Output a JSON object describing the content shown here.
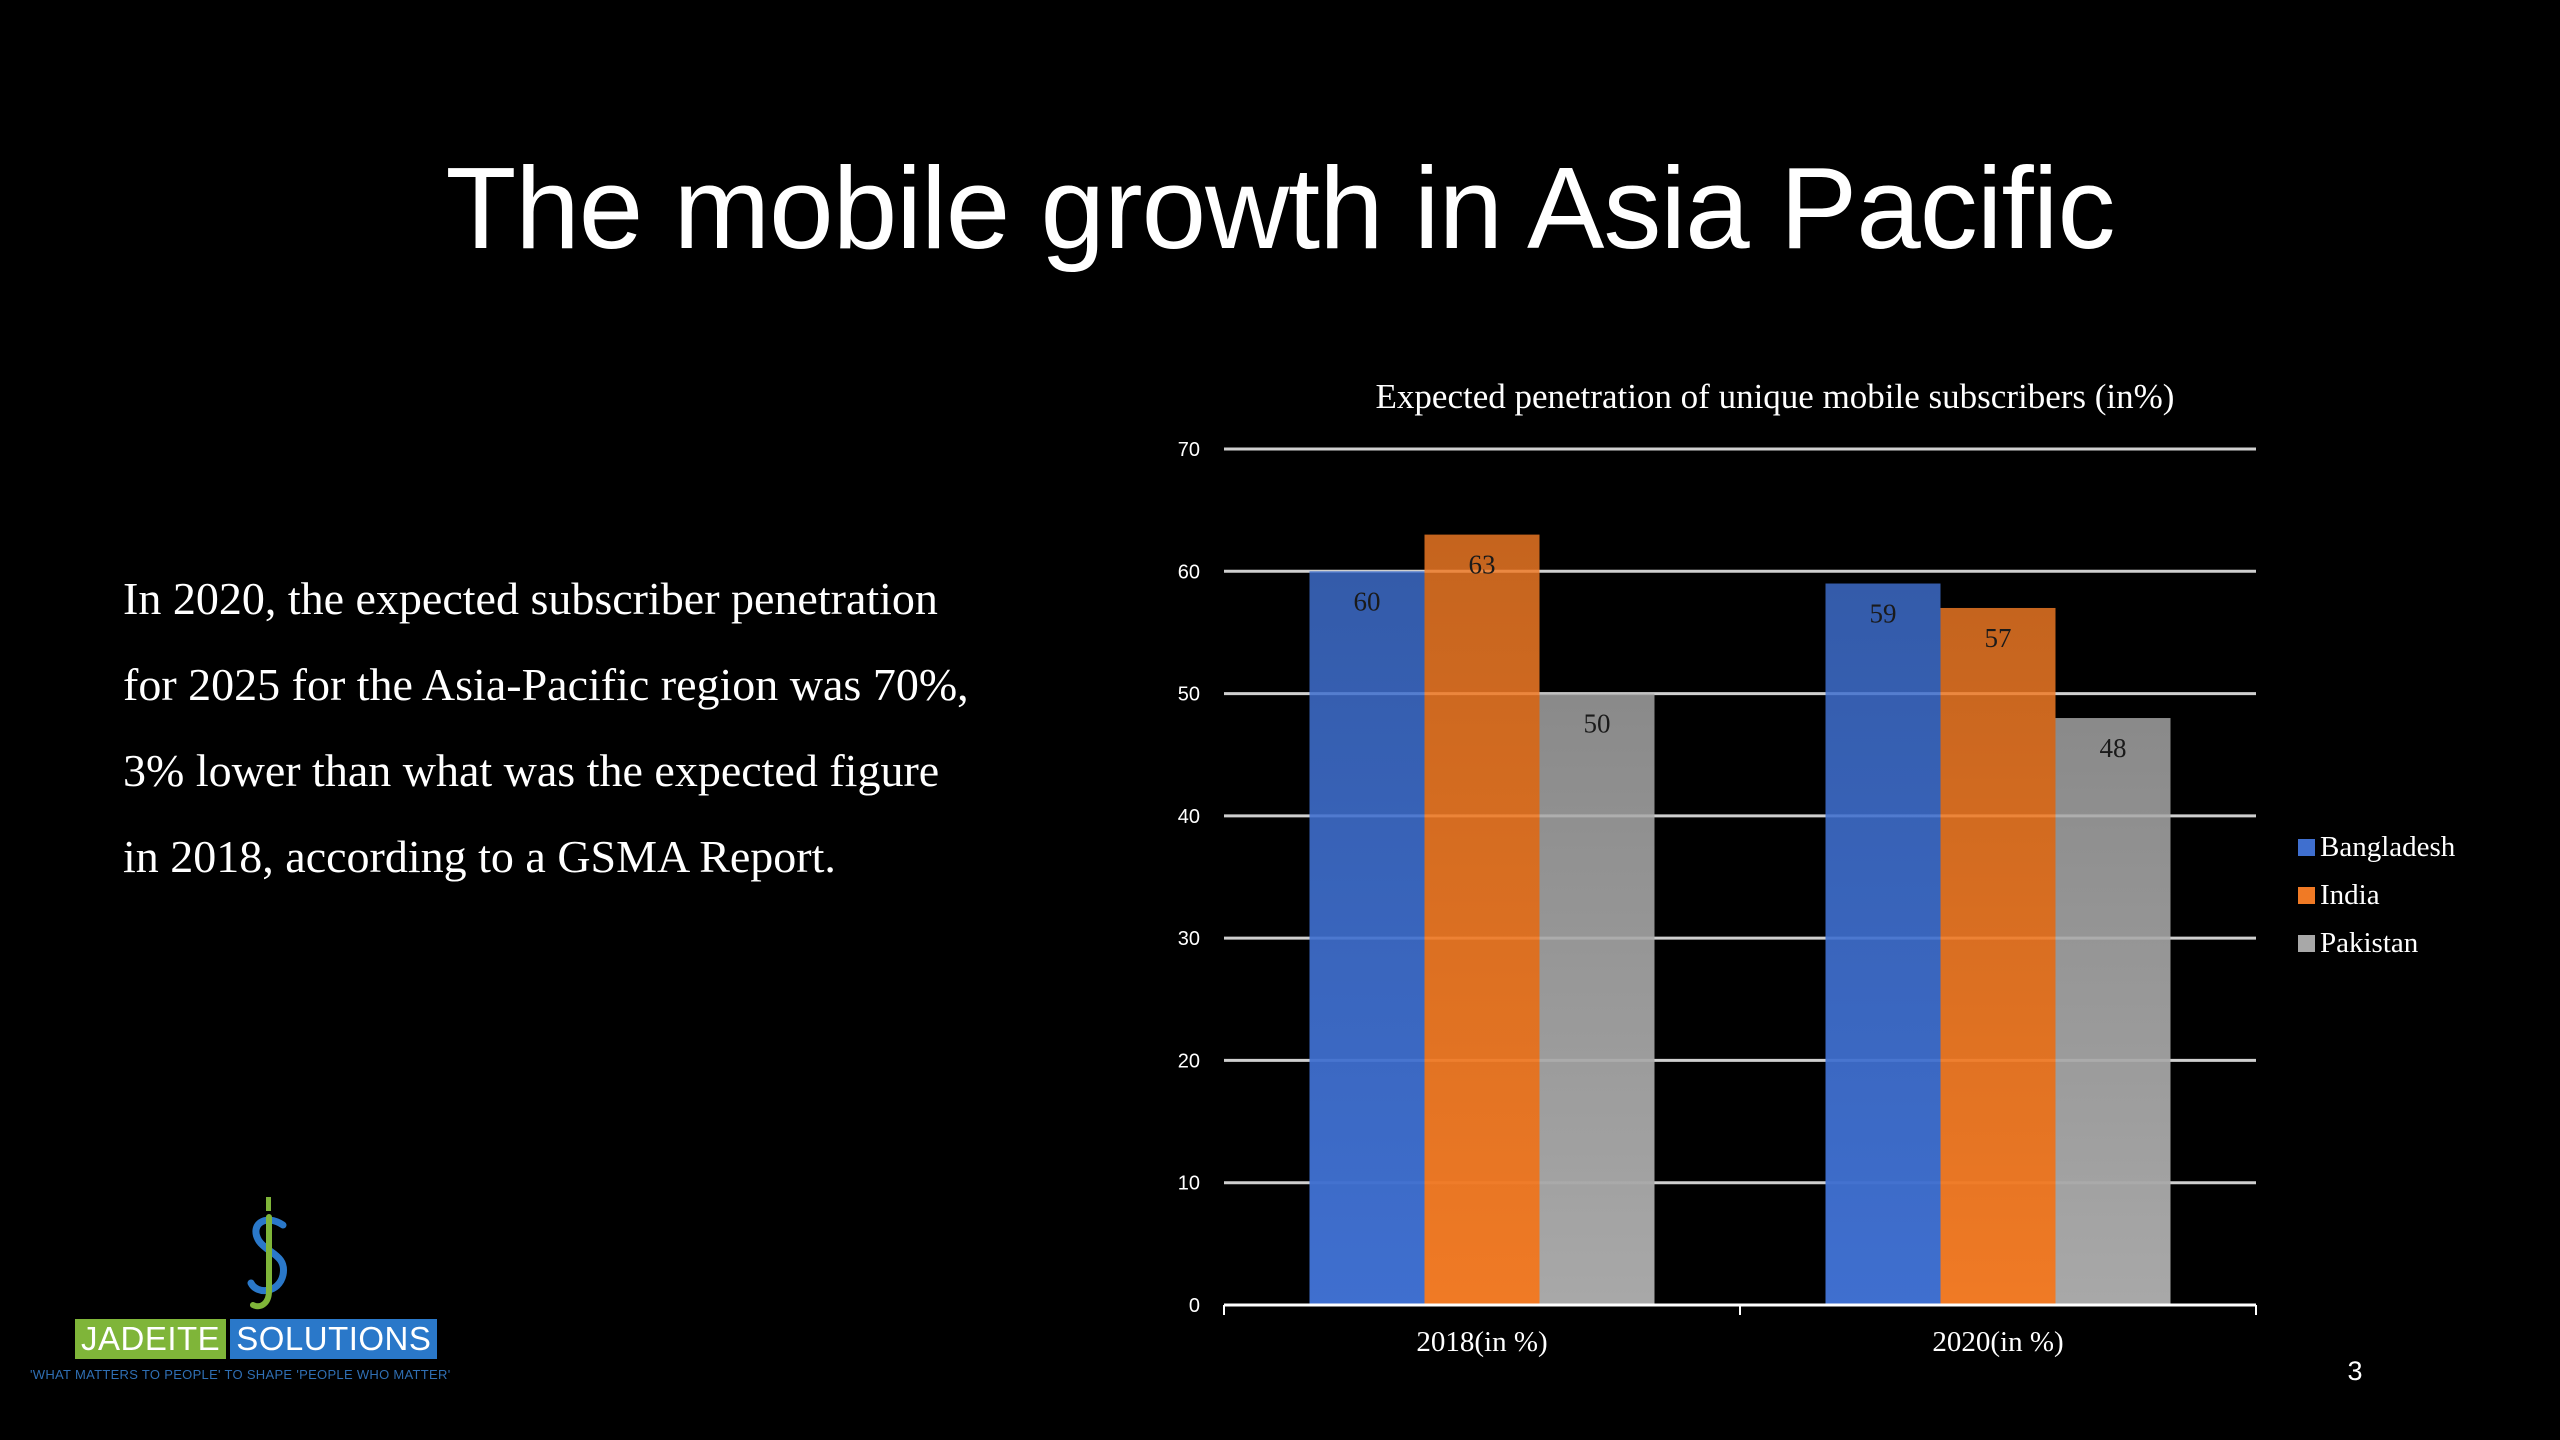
{
  "slide": {
    "title": "The mobile growth in Asia Pacific",
    "body_lines": [
      "In 2020, the expected subscriber penetration",
      "for 2025 for the Asia-Pacific region was 70%,",
      "3% lower than what was the expected figure",
      "in 2018, according to a GSMA Report."
    ],
    "page_number": "3"
  },
  "logo": {
    "word_left": "JADEITE",
    "word_right": "SOLUTIONS",
    "tagline": "'WHAT MATTERS TO PEOPLE' TO SHAPE 'PEOPLE WHO MATTER'",
    "colors": {
      "green": "#7fb539",
      "blue": "#2a78c9"
    }
  },
  "chart_data": {
    "type": "bar",
    "title": "Expected penetration of unique mobile subscribers (in%)",
    "categories": [
      "2018(in %)",
      "2020(in %)"
    ],
    "series": [
      {
        "name": "Bangladesh",
        "values": [
          60,
          59
        ],
        "color": "#3f6fcf"
      },
      {
        "name": "India",
        "values": [
          63,
          57
        ],
        "color": "#f07a25"
      },
      {
        "name": "Pakistan",
        "values": [
          50,
          48
        ],
        "color": "#a8a8a8"
      }
    ],
    "ylim": [
      0,
      70
    ],
    "yticks": [
      0,
      10,
      20,
      30,
      40,
      50,
      60,
      70
    ],
    "grid": true,
    "data_labels": true,
    "legend_position": "right"
  }
}
